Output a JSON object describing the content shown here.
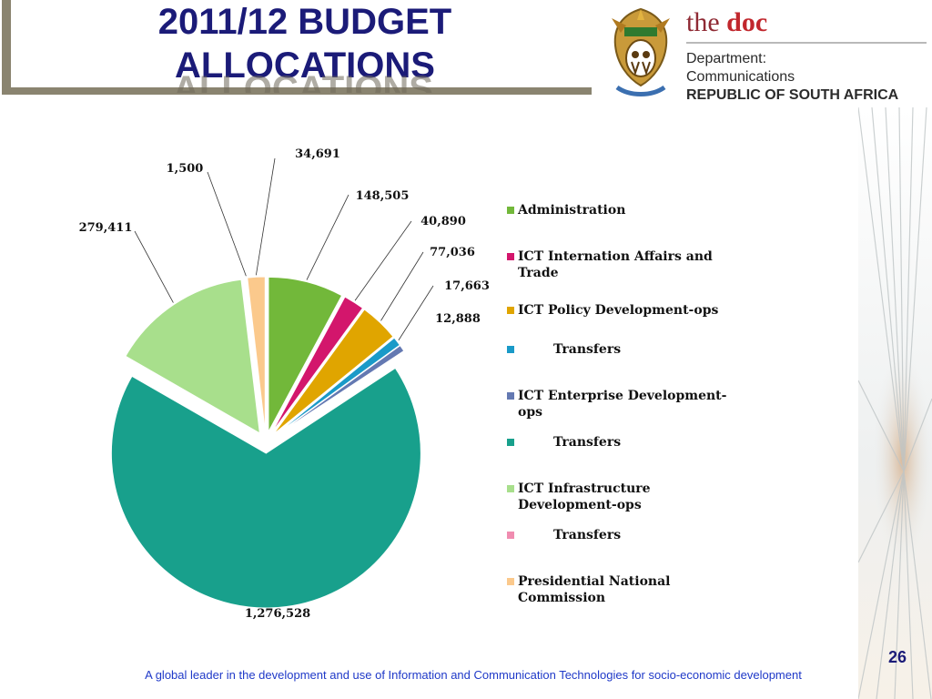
{
  "slide": {
    "title_line1": "2011/12 BUDGET",
    "title_line2": "ALLOCATIONS",
    "page_number": "26",
    "footer": "A global leader in the development and use of Information and Communication Technologies for socio-economic development"
  },
  "logo": {
    "brand_prefix": "the ",
    "brand_name": "doc",
    "dept_line1": "Department:",
    "dept_line2": "Communications",
    "dept_line3": "REPUBLIC OF SOUTH AFRICA"
  },
  "colors": {
    "title": "#1b1b78",
    "footer": "#1f39c8"
  },
  "chart_data": {
    "type": "pie",
    "exploded": true,
    "legend_position": "right",
    "slices": [
      {
        "label": "Administration",
        "value": 148505,
        "display": "148,505",
        "color": "#72b83a"
      },
      {
        "label": "ICT Internation Affairs and Trade",
        "value": 40890,
        "display": "40,890",
        "color": "#d3166c"
      },
      {
        "label": "ICT Policy Development-ops",
        "value": 77036,
        "display": "77,036",
        "color": "#e0a500"
      },
      {
        "label": "        Transfers",
        "value": 17663,
        "display": "17,663",
        "color": "#1a9ac8"
      },
      {
        "label": "ICT Enterprise Development-ops",
        "value": 12888,
        "display": "12,888",
        "color": "#6479b2"
      },
      {
        "label": "        Transfers",
        "value": 1276528,
        "display": "1,276,528",
        "color": "#18a08c"
      },
      {
        "label": "ICT Infrastructure Development-ops",
        "value": 279411,
        "display": "279,411",
        "color": "#a8df8c"
      },
      {
        "label": "        Transfers",
        "value": 1500,
        "display": "1,500",
        "color": "#f08cb0"
      },
      {
        "label": "Presidential National Commission",
        "value": 34691,
        "display": "34,691",
        "color": "#fbc98c"
      }
    ]
  }
}
